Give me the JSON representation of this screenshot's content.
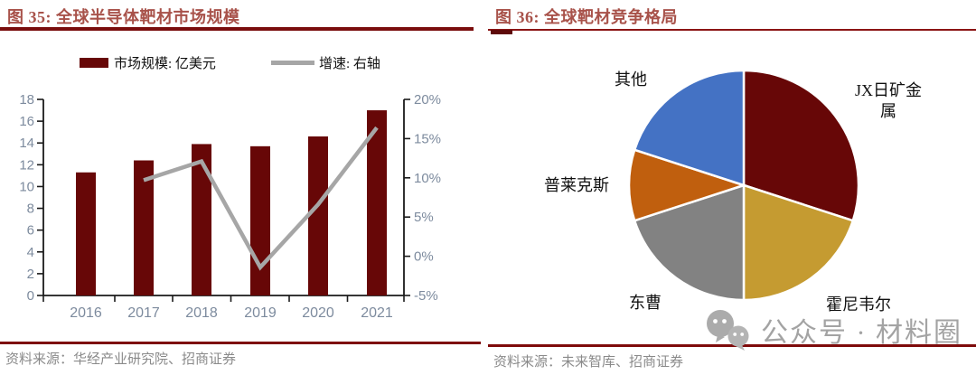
{
  "figures": {
    "left": {
      "title": "图 35: 全球半导体靶材市场规模",
      "source": "资料来源：华经产业研究院、招商证券"
    },
    "right": {
      "title": "图 36: 全球靶材竞争格局",
      "source": "资料来源：未来智库、招商证券"
    }
  },
  "watermark": {
    "text": "公众号 · 材料圈",
    "icon": "wechat-icon",
    "color": "#a3a3a3"
  },
  "colors": {
    "dark_red": "#670707",
    "title_red": "#a8524a",
    "rule_red": "#7a0d0d",
    "line_gray": "#a6a6a6",
    "axis_label": "#7d8b9e",
    "gold": "#c59b31",
    "gray": "#828282",
    "orange": "#c05f0e",
    "blue": "#4472c4"
  },
  "chart_data": [
    {
      "type": "bar",
      "title": "全球半导体靶材市场规模",
      "categories": [
        "2016",
        "2017",
        "2018",
        "2019",
        "2020",
        "2021"
      ],
      "series": [
        {
          "name": "市场规模: 亿美元",
          "type": "bar",
          "axis": "left",
          "color": "#670707",
          "values": [
            11.3,
            12.4,
            13.9,
            13.7,
            14.6,
            17.0
          ]
        },
        {
          "name": "增速: 右轴",
          "type": "line",
          "axis": "right",
          "color": "#a6a6a6",
          "values": [
            null,
            9.7,
            12.1,
            -1.4,
            6.6,
            16.4
          ]
        }
      ],
      "left_axis": {
        "unit": "亿美元",
        "min": 0,
        "max": 18,
        "step": 2
      },
      "right_axis": {
        "min": -5,
        "max": 20,
        "step": 5,
        "suffix": "%"
      },
      "legend_position": "top",
      "grid": false
    },
    {
      "type": "pie",
      "title": "全球靶材竞争格局",
      "labels": [
        "JX日矿金属",
        "霍尼韦尔",
        "东曹",
        "普莱克斯",
        "其他"
      ],
      "values": [
        30,
        20,
        20,
        10,
        20
      ],
      "colors": [
        "#670707",
        "#c59b31",
        "#828282",
        "#c05f0e",
        "#4472c4"
      ],
      "start_angle_deg": 0,
      "direction": "clockwise",
      "legend_position": "none"
    }
  ]
}
